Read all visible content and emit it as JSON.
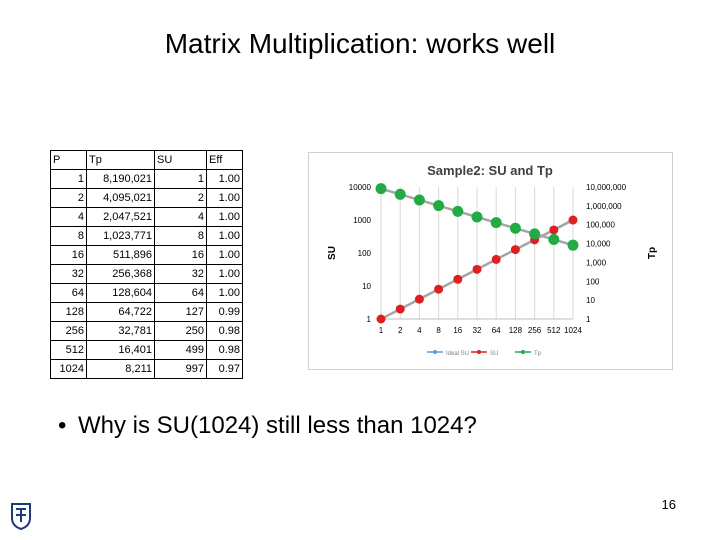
{
  "slide": {
    "title": "Matrix Multiplication: works well",
    "bullet": "Why is SU(1024) still less than 1024?",
    "page_number": "16",
    "logo_icon": "technion-logo-icon"
  },
  "table": {
    "headers": [
      "P",
      "Tp",
      "SU",
      "Eff"
    ],
    "rows": [
      [
        "1",
        "8,190,021",
        "1",
        "1.00"
      ],
      [
        "2",
        "4,095,021",
        "2",
        "1.00"
      ],
      [
        "4",
        "2,047,521",
        "4",
        "1.00"
      ],
      [
        "8",
        "1,023,771",
        "8",
        "1.00"
      ],
      [
        "16",
        "511,896",
        "16",
        "1.00"
      ],
      [
        "32",
        "256,368",
        "32",
        "1.00"
      ],
      [
        "64",
        "128,604",
        "64",
        "1.00"
      ],
      [
        "128",
        "64,722",
        "127",
        "0.99"
      ],
      [
        "256",
        "32,781",
        "250",
        "0.98"
      ],
      [
        "512",
        "16,401",
        "499",
        "0.98"
      ],
      [
        "1024",
        "8,211",
        "997",
        "0.97"
      ]
    ]
  },
  "chart_data": {
    "type": "line",
    "title": "Sample2:  SU and Tp",
    "x": [
      "1",
      "2",
      "4",
      "8",
      "16",
      "32",
      "64",
      "128",
      "256",
      "512",
      "1024"
    ],
    "xtick_labels": [
      "1",
      "2",
      "4",
      "8",
      "16",
      "32",
      "64",
      "128",
      "256",
      "512",
      "1024"
    ],
    "ylabel_left": "SU",
    "ylabel_right": "Tp",
    "y_left_scale": "log",
    "y_left_ticks": [
      "1",
      "10",
      "100",
      "1000",
      "10000"
    ],
    "y_left_range": [
      1,
      10000
    ],
    "y_right_scale": "log",
    "y_right_ticks": [
      "1",
      "10",
      "100",
      "1,000",
      "10,000",
      "100,000",
      "1,000,000",
      "10,000,000"
    ],
    "y_right_range": [
      1,
      10000000
    ],
    "series": [
      {
        "name": "Ideal SU",
        "axis": "left",
        "color": "#5b9bd5",
        "values": [
          1,
          2,
          4,
          8,
          16,
          32,
          64,
          128,
          256,
          512,
          1024
        ]
      },
      {
        "name": "SU",
        "axis": "left",
        "color": "#e02020",
        "values": [
          1,
          2,
          4,
          8,
          16,
          32,
          64,
          127,
          250,
          499,
          997
        ]
      },
      {
        "name": "Tp",
        "axis": "right",
        "color": "#22aa44",
        "values": [
          8190021,
          4095021,
          2047521,
          1023771,
          511896,
          256368,
          128604,
          64722,
          32781,
          16401,
          8211
        ]
      }
    ],
    "legend": [
      "Ideal SU",
      "SU",
      "Tp"
    ],
    "legend_position": "bottom",
    "grid": "vertical"
  }
}
